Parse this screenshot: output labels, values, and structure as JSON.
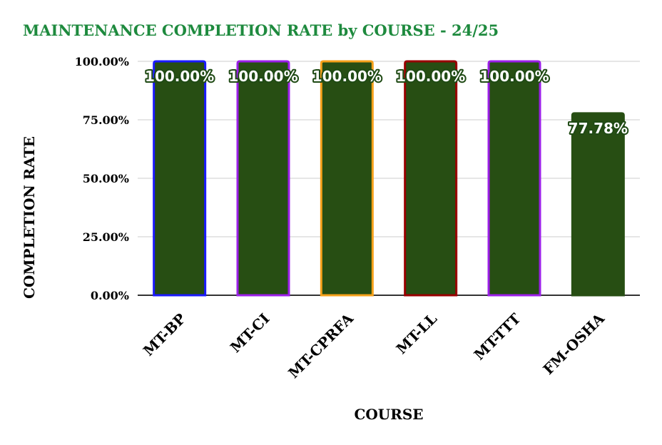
{
  "chart_data": {
    "type": "bar",
    "title": "MAINTENANCE COMPLETION RATE by COURSE - 24/25",
    "xlabel": "COURSE",
    "ylabel": "COMPLETION RATE",
    "categories": [
      "MT-BP",
      "MT-CI",
      "MT-CPRFA",
      "MT-LL",
      "MT-TTT",
      "FM-OSHA"
    ],
    "values": [
      100.0,
      100.0,
      100.0,
      100.0,
      100.0,
      77.78
    ],
    "data_labels": [
      "100.00%",
      "100.00%",
      "100.00%",
      "100.00%",
      "100.00%",
      "77.78%"
    ],
    "ylim": [
      0,
      100
    ],
    "yticks": [
      0,
      25,
      50,
      75,
      100
    ],
    "ytick_labels": [
      "0.00%",
      "25.00%",
      "50.00%",
      "75.00%",
      "100.00%"
    ],
    "grid": true,
    "legend": "none",
    "colors": {
      "title": "#1e8a3e",
      "bar_fill": "#274e13",
      "gridline": "#cccccc",
      "baseline": "#333333",
      "bar_borders": [
        "#1a1aff",
        "#9b1fe8",
        "#f5a01a",
        "#990000",
        "#9b1fe8",
        "#274e13"
      ]
    }
  }
}
